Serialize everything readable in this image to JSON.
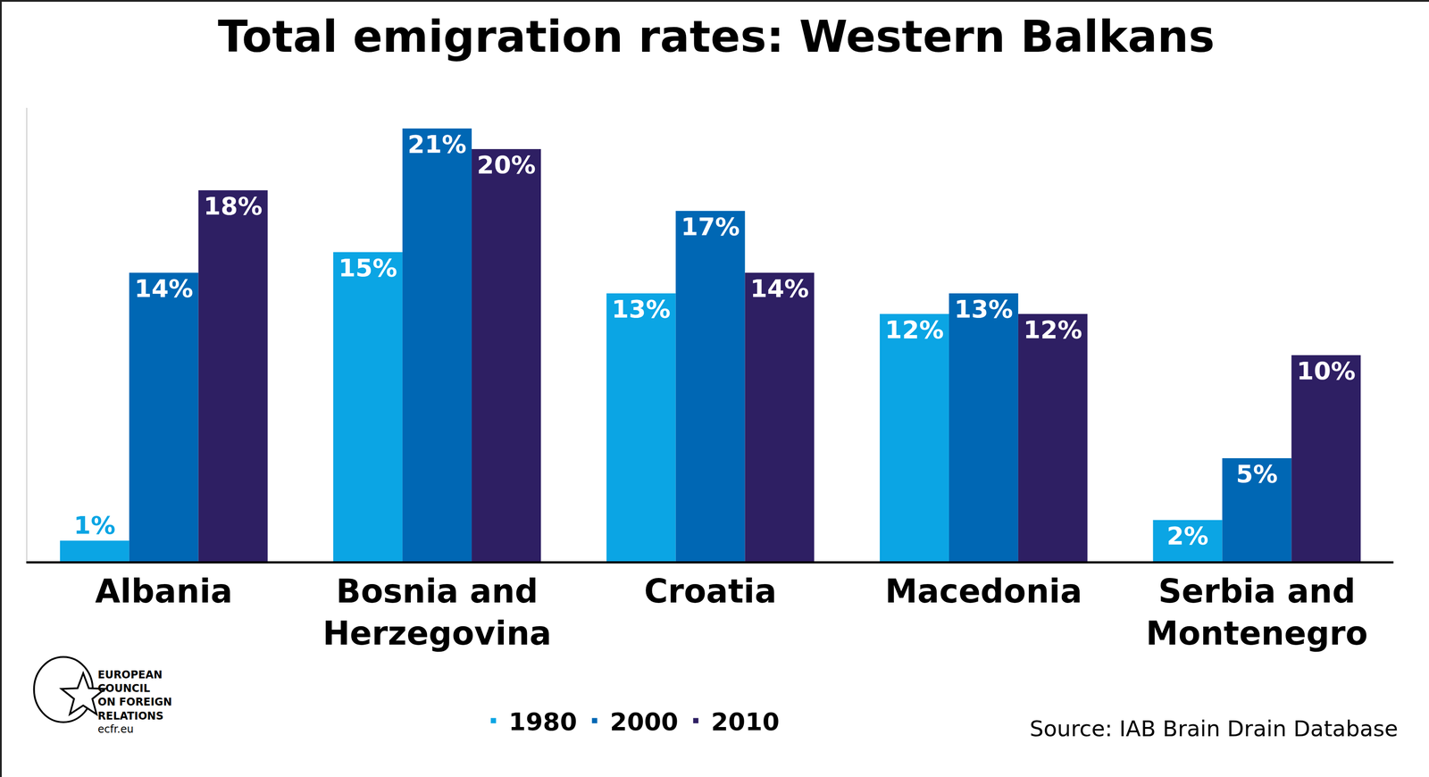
{
  "chart_data": {
    "type": "bar",
    "title": "Total emigration rates: Western Balkans",
    "categories": [
      "Albania",
      "Bosnia and Herzegovina",
      "Croatia",
      "Macedonia",
      "Serbia and Montenegro"
    ],
    "series": [
      {
        "name": "1980",
        "color": "#0ba5e4",
        "values": [
          1,
          15,
          13,
          12,
          2
        ],
        "value_labels": [
          "1%",
          "15%",
          "13%",
          "12%",
          "2%"
        ]
      },
      {
        "name": "2000",
        "color": "#0067b4",
        "values": [
          14,
          21,
          17,
          13,
          5
        ],
        "value_labels": [
          "14%",
          "21%",
          "17%",
          "13%",
          "5%"
        ]
      },
      {
        "name": "2010",
        "color": "#2e1f63",
        "values": [
          18,
          20,
          14,
          12,
          10
        ],
        "value_labels": [
          "18%",
          "20%",
          "14%",
          "12%",
          "10%"
        ]
      }
    ],
    "ylim": [
      0,
      22
    ],
    "yticks": [],
    "grid": false,
    "legend": "bottom",
    "data_labels": true,
    "tick_labels": "x",
    "source": "Source: IAB Brain Drain Database",
    "logo": [
      "EUROPEAN",
      "COUNCIL",
      "ON FOREIGN",
      "RELATIONS",
      "ecfr.eu"
    ]
  }
}
